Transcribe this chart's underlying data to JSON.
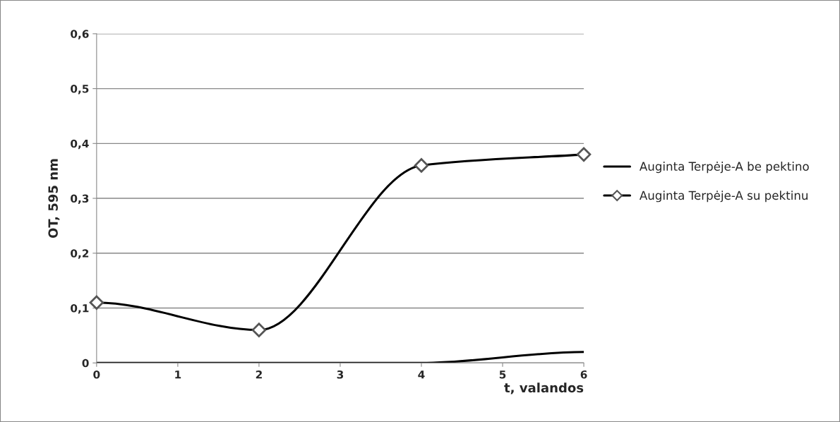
{
  "chart_data": {
    "type": "line",
    "xlabel": "t, valandos",
    "ylabel": "OT, 595 nm",
    "xlim": [
      0,
      6
    ],
    "xticks": [
      0,
      1,
      2,
      3,
      4,
      5,
      6
    ],
    "ylim": [
      0,
      0.6
    ],
    "yticks": [
      0,
      {
        "value": 0.1,
        "label": "0,1"
      },
      {
        "value": 0.2,
        "label": "0,2"
      },
      {
        "value": 0.3,
        "label": "0,3"
      },
      {
        "value": 0.4,
        "label": "0,4"
      },
      {
        "value": 0.5,
        "label": "0,5"
      },
      {
        "value": 0.6,
        "label": "0,6"
      }
    ],
    "grid": "y",
    "legend": "right",
    "series": [
      {
        "name": "Auginta Terpėje-A be pektino",
        "color": "#000000",
        "marker": "none",
        "x": [
          0,
          2,
          4,
          6
        ],
        "values": [
          0,
          0,
          0,
          0.02
        ]
      },
      {
        "name": "Auginta Terpėje-A su pektinu",
        "color": "#000000",
        "marker": "diamond",
        "x": [
          0,
          2,
          4,
          6
        ],
        "values": [
          0.11,
          0.06,
          0.36,
          0.38
        ]
      }
    ]
  }
}
